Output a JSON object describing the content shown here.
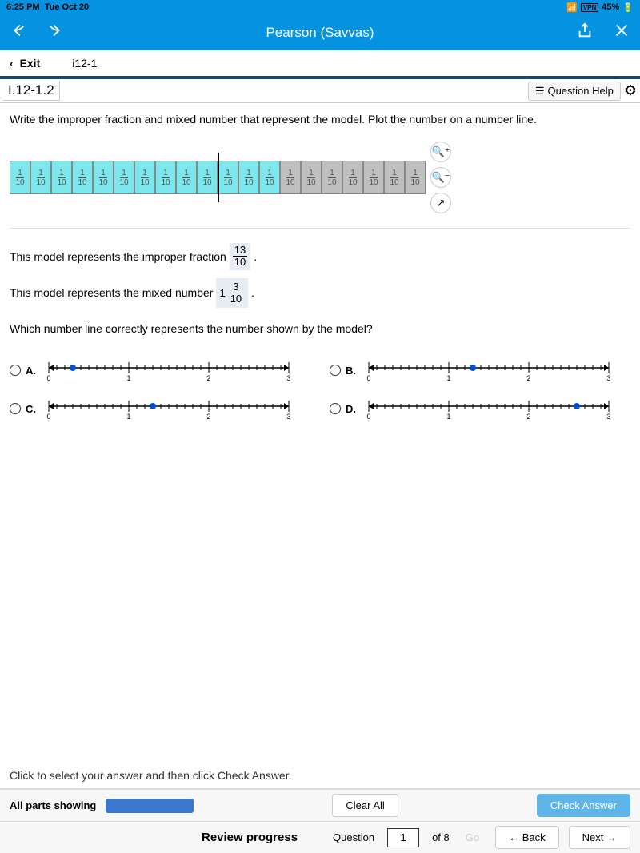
{
  "status": {
    "time": "6:25 PM",
    "date": "Tue Oct 20",
    "vpn": "VPN",
    "battery": "45%"
  },
  "header": {
    "title": "Pearson (Savvas)"
  },
  "subheader": {
    "exit": "Exit",
    "assignment": "i12-1"
  },
  "questionbar": {
    "id": "I.12-1.2",
    "help": "Question Help"
  },
  "content": {
    "prompt": "Write the improper fraction and mixed number that represent the model. Plot the number on a number line.",
    "model": {
      "cells": [
        {
          "n": "1",
          "d": "10",
          "f": true
        },
        {
          "n": "1",
          "d": "10",
          "f": true
        },
        {
          "n": "1",
          "d": "10",
          "f": true
        },
        {
          "n": "1",
          "d": "10",
          "f": true
        },
        {
          "n": "1",
          "d": "10",
          "f": true
        },
        {
          "n": "1",
          "d": "10",
          "f": true
        },
        {
          "n": "1",
          "d": "10",
          "f": true
        },
        {
          "n": "1",
          "d": "10",
          "f": true
        },
        {
          "n": "1",
          "d": "10",
          "f": true
        },
        {
          "n": "1",
          "d": "10",
          "f": true
        },
        {
          "n": "1",
          "d": "10",
          "f": true
        },
        {
          "n": "1",
          "d": "10",
          "f": true
        },
        {
          "n": "1",
          "d": "10",
          "f": true
        },
        {
          "n": "1",
          "d": "10",
          "f": false
        },
        {
          "n": "1",
          "d": "10",
          "f": false
        },
        {
          "n": "1",
          "d": "10",
          "f": false
        },
        {
          "n": "1",
          "d": "10",
          "f": false
        },
        {
          "n": "1",
          "d": "10",
          "f": false
        },
        {
          "n": "1",
          "d": "10",
          "f": false
        },
        {
          "n": "1",
          "d": "10",
          "f": false
        }
      ],
      "divider_after": 10
    },
    "s1_pre": "This model represents the improper fraction",
    "s1_num": "13",
    "s1_den": "10",
    "s2_pre": "This model represents the mixed number",
    "s2_whole": "1",
    "s2_num": "3",
    "s2_den": "10",
    "q2": "Which number line correctly represents the number shown by the model?",
    "options": [
      {
        "label": "A.",
        "dot": 0.3,
        "min": 0,
        "max": 3
      },
      {
        "label": "B.",
        "dot": 1.3,
        "min": 0,
        "max": 3
      },
      {
        "label": "C.",
        "dot": 1.3,
        "min": 0,
        "max": 3
      },
      {
        "label": "D.",
        "dot": 2.6,
        "min": 0,
        "max": 3
      }
    ]
  },
  "instruction": "Click to select your answer and then click Check Answer.",
  "footer1": {
    "parts": "All parts showing",
    "clear": "Clear All",
    "check": "Check Answer"
  },
  "footer2": {
    "review": "Review progress",
    "qlabel": "Question",
    "qnum": "1",
    "qtotal": "of 8",
    "go": "Go",
    "back": "Back",
    "next": "Next"
  }
}
